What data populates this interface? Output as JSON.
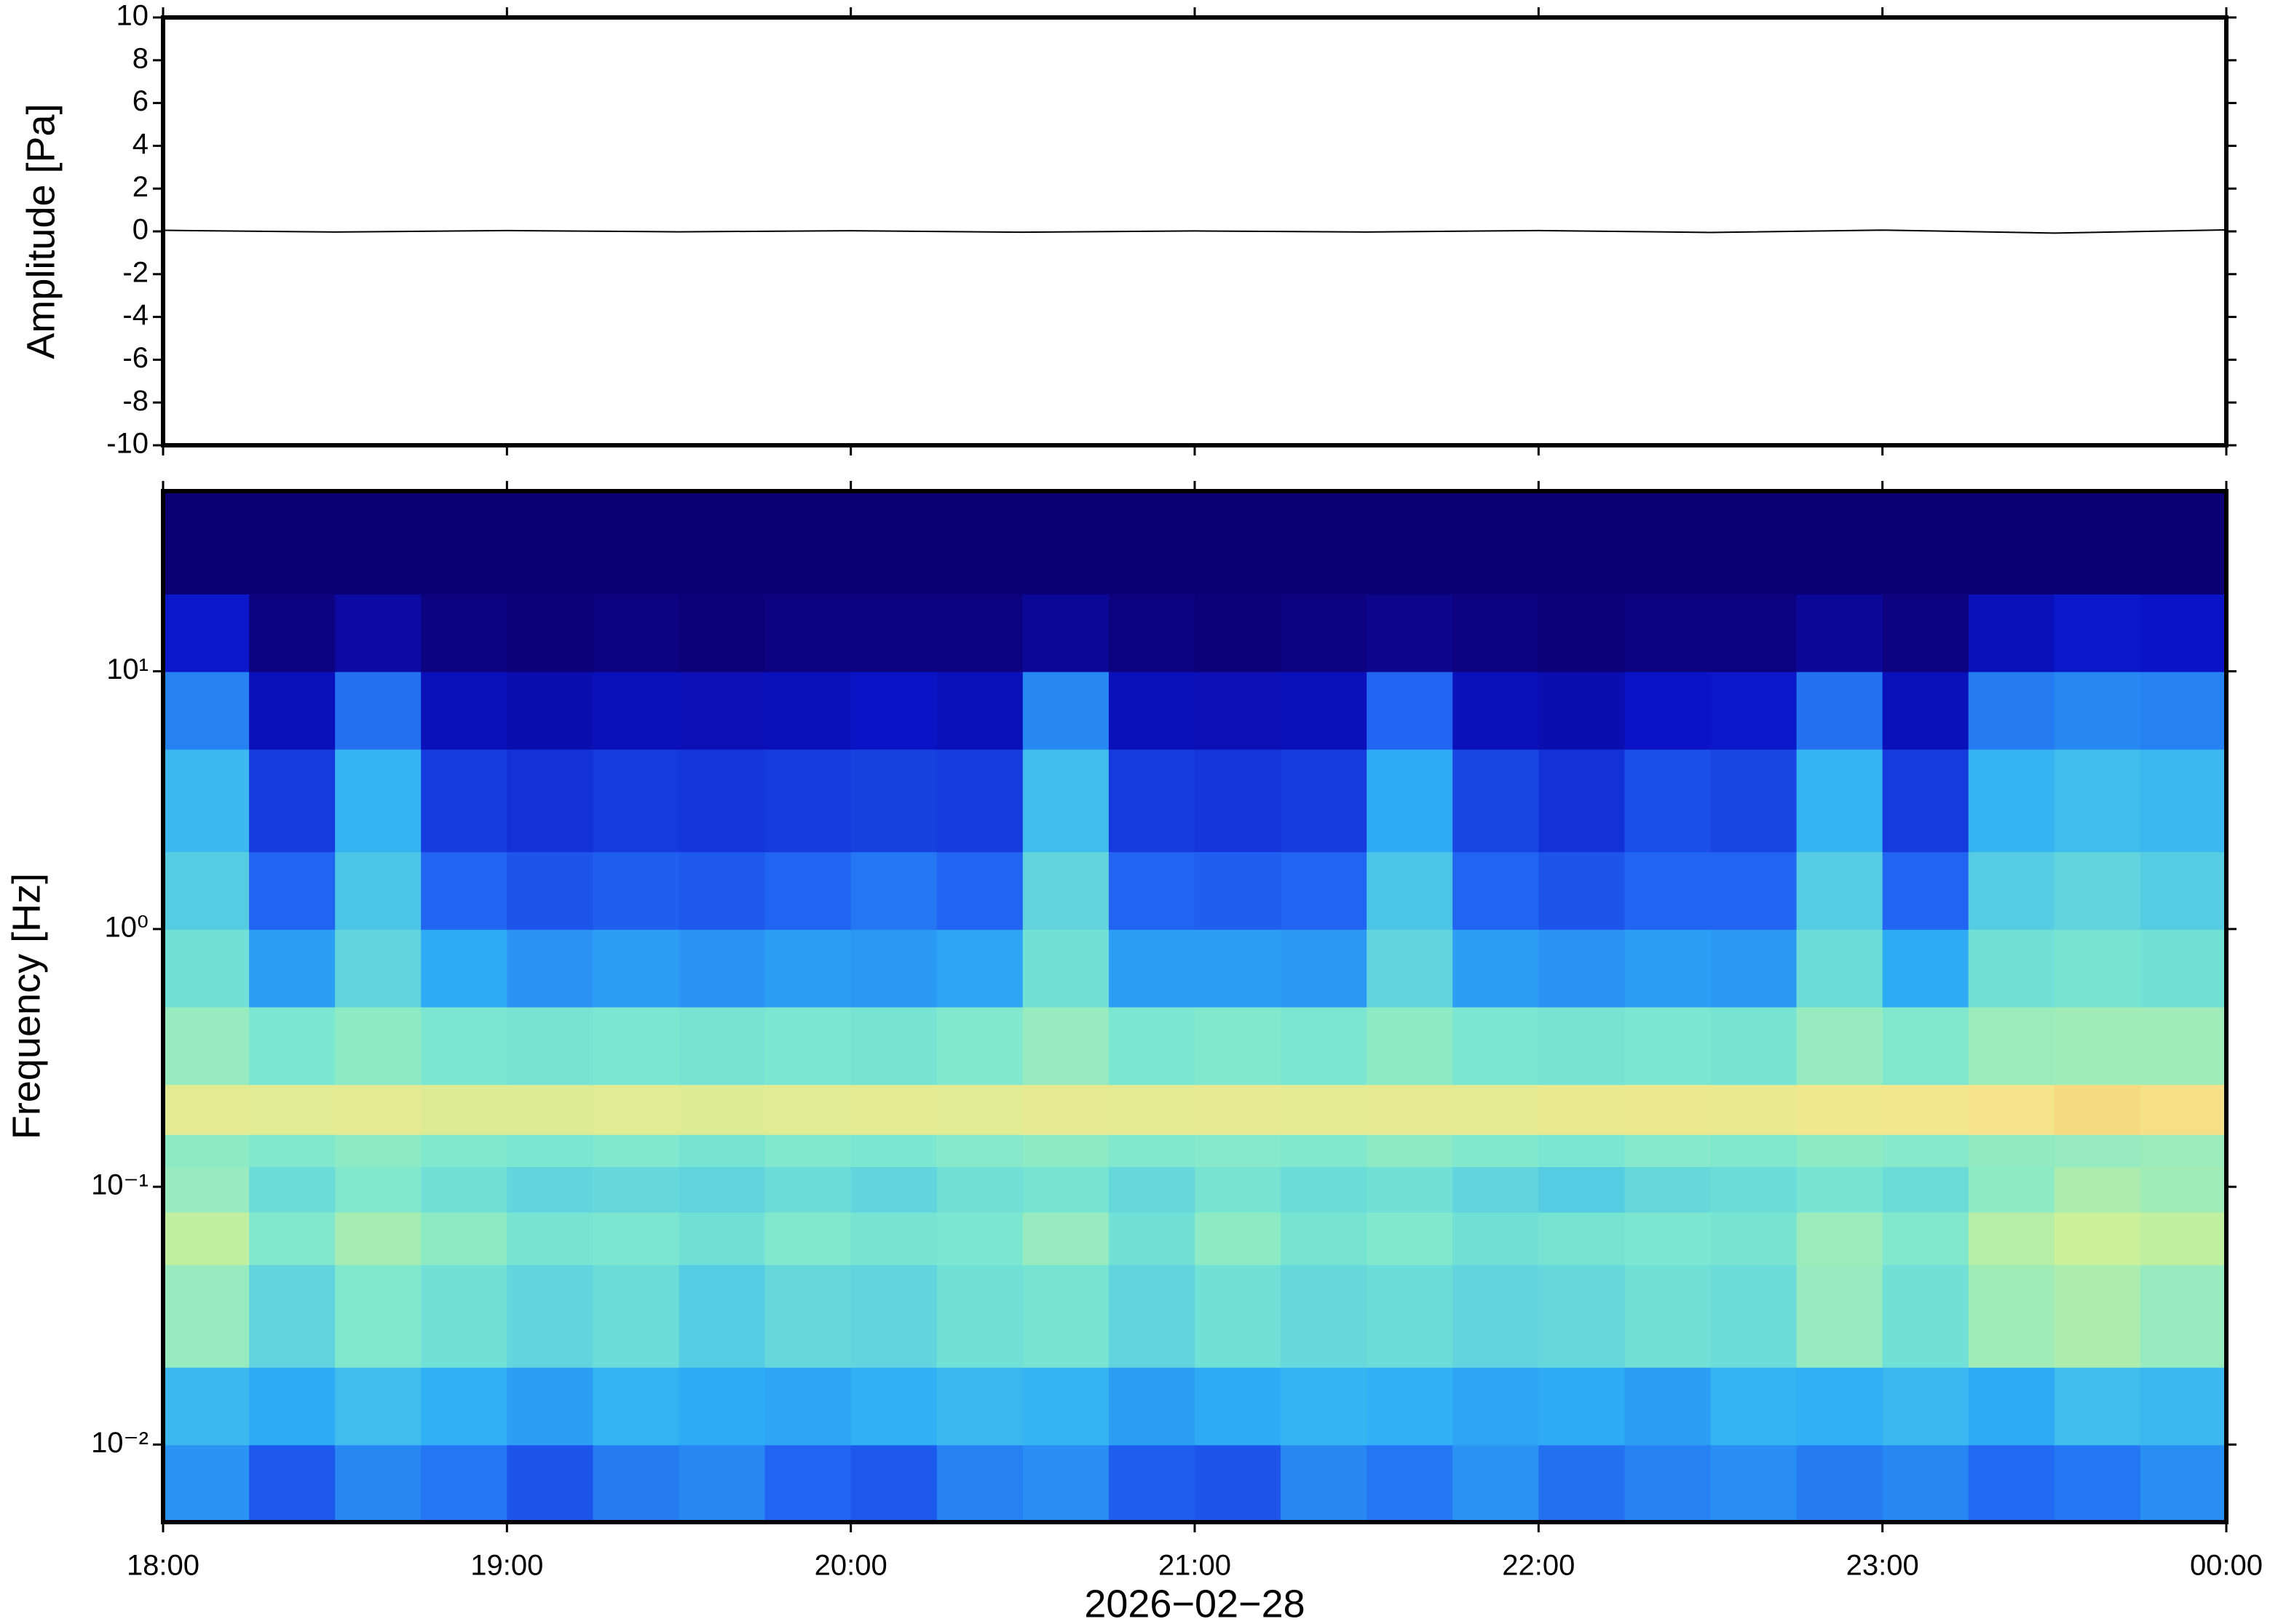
{
  "chart_data": [
    {
      "type": "line",
      "ylabel": "Amplitude [Pa]",
      "xlim": [
        18,
        24
      ],
      "xticks": [
        {
          "value": 18,
          "label": "18:00"
        },
        {
          "value": 19,
          "label": "19:00"
        },
        {
          "value": 20,
          "label": "20:00"
        },
        {
          "value": 21,
          "label": "21:00"
        },
        {
          "value": 22,
          "label": "22:00"
        },
        {
          "value": 23,
          "label": "23:00"
        },
        {
          "value": 24,
          "label": "00:00"
        }
      ],
      "ylim": [
        -10,
        10
      ],
      "yticks": [
        -10,
        -8,
        -6,
        -4,
        -2,
        0,
        2,
        4,
        6,
        8,
        10
      ],
      "series": [
        {
          "color": "#000000",
          "x": [
            18,
            18.5,
            19,
            19.5,
            20,
            20.5,
            21,
            21.5,
            22,
            22.5,
            23,
            23.5,
            24
          ],
          "values": [
            0.05,
            -0.03,
            0.04,
            -0.02,
            0.03,
            -0.04,
            0.02,
            -0.03,
            0.04,
            -0.05,
            0.06,
            -0.08,
            0.07
          ]
        }
      ]
    },
    {
      "type": "heatmap",
      "ylabel": "Frequency [Hz]",
      "xlabel": "2026−02−28",
      "log_y": true,
      "xlim": [
        18,
        24
      ],
      "xticks": [
        {
          "value": 18,
          "label": "18:00"
        },
        {
          "value": 19,
          "label": "19:00"
        },
        {
          "value": 20,
          "label": "20:00"
        },
        {
          "value": 21,
          "label": "21:00"
        },
        {
          "value": 22,
          "label": "22:00"
        },
        {
          "value": 23,
          "label": "23:00"
        },
        {
          "value": 24,
          "label": "00:00"
        }
      ],
      "ylim": [
        0.005,
        50
      ],
      "yticks": [
        {
          "value": 0.01,
          "label": "10⁻²"
        },
        {
          "value": 0.1,
          "label": "10⁻¹"
        },
        {
          "value": 1,
          "label": "10⁰"
        },
        {
          "value": 10,
          "label": "10¹"
        }
      ],
      "colormap": [
        "#0d0074",
        "#0a14c8",
        "#1f5cf0",
        "#2fb0f5",
        "#7de8d0",
        "#c8f09a",
        "#f5e68c",
        "#f59a50"
      ],
      "time_bins": [
        18,
        18.25,
        18.5,
        18.75,
        19,
        19.25,
        19.5,
        19.75,
        20,
        20.25,
        20.5,
        20.75,
        21,
        21.25,
        21.5,
        21.75,
        22,
        22.25,
        22.5,
        22.75,
        23,
        23.25,
        23.5,
        23.75,
        24
      ],
      "frequency_bins": [
        0.005,
        0.01,
        0.02,
        0.05,
        0.08,
        0.12,
        0.16,
        0.25,
        0.5,
        1,
        2,
        5,
        10,
        20,
        50
      ],
      "z": [
        [
          0.38,
          0.28,
          0.36,
          0.33,
          0.27,
          0.34,
          0.36,
          0.3,
          0.28,
          0.35,
          0.37,
          0.29,
          0.27,
          0.36,
          0.33,
          0.38,
          0.32,
          0.35,
          0.37,
          0.34,
          0.36,
          0.31,
          0.33,
          0.37
        ],
        [
          0.45,
          0.42,
          0.46,
          0.43,
          0.4,
          0.44,
          0.42,
          0.41,
          0.43,
          0.45,
          0.44,
          0.4,
          0.42,
          0.44,
          0.43,
          0.41,
          0.42,
          0.4,
          0.44,
          0.43,
          0.45,
          0.42,
          0.46,
          0.45
        ],
        [
          0.62,
          0.52,
          0.58,
          0.55,
          0.52,
          0.54,
          0.5,
          0.53,
          0.52,
          0.55,
          0.56,
          0.52,
          0.55,
          0.53,
          0.54,
          0.52,
          0.53,
          0.55,
          0.54,
          0.62,
          0.55,
          0.64,
          0.66,
          0.62
        ],
        [
          0.7,
          0.58,
          0.65,
          0.6,
          0.56,
          0.57,
          0.55,
          0.58,
          0.56,
          0.57,
          0.62,
          0.55,
          0.6,
          0.56,
          0.58,
          0.55,
          0.56,
          0.57,
          0.56,
          0.63,
          0.58,
          0.68,
          0.72,
          0.7
        ],
        [
          0.62,
          0.54,
          0.58,
          0.55,
          0.52,
          0.53,
          0.52,
          0.54,
          0.52,
          0.55,
          0.56,
          0.53,
          0.56,
          0.54,
          0.55,
          0.52,
          0.5,
          0.53,
          0.54,
          0.56,
          0.54,
          0.6,
          0.66,
          0.64
        ],
        [
          0.6,
          0.58,
          0.6,
          0.58,
          0.57,
          0.58,
          0.56,
          0.58,
          0.57,
          0.59,
          0.6,
          0.58,
          0.59,
          0.58,
          0.6,
          0.58,
          0.57,
          0.59,
          0.58,
          0.6,
          0.59,
          0.61,
          0.62,
          0.63
        ],
        [
          0.8,
          0.79,
          0.8,
          0.78,
          0.78,
          0.79,
          0.78,
          0.79,
          0.8,
          0.79,
          0.81,
          0.8,
          0.81,
          0.8,
          0.81,
          0.8,
          0.82,
          0.83,
          0.82,
          0.84,
          0.85,
          0.86,
          0.88,
          0.87
        ],
        [
          0.62,
          0.57,
          0.6,
          0.57,
          0.56,
          0.57,
          0.56,
          0.57,
          0.56,
          0.58,
          0.62,
          0.57,
          0.58,
          0.57,
          0.6,
          0.57,
          0.56,
          0.57,
          0.56,
          0.62,
          0.58,
          0.63,
          0.64,
          0.64
        ],
        [
          0.55,
          0.4,
          0.52,
          0.42,
          0.38,
          0.4,
          0.38,
          0.4,
          0.39,
          0.41,
          0.55,
          0.4,
          0.4,
          0.39,
          0.52,
          0.4,
          0.38,
          0.4,
          0.39,
          0.54,
          0.42,
          0.55,
          0.56,
          0.55
        ],
        [
          0.5,
          0.3,
          0.48,
          0.3,
          0.27,
          0.29,
          0.28,
          0.3,
          0.33,
          0.3,
          0.52,
          0.3,
          0.29,
          0.3,
          0.48,
          0.3,
          0.27,
          0.3,
          0.3,
          0.5,
          0.3,
          0.5,
          0.52,
          0.5
        ],
        [
          0.45,
          0.22,
          0.44,
          0.22,
          0.2,
          0.22,
          0.21,
          0.22,
          0.23,
          0.22,
          0.46,
          0.22,
          0.21,
          0.22,
          0.42,
          0.24,
          0.2,
          0.26,
          0.24,
          0.44,
          0.22,
          0.44,
          0.46,
          0.45
        ],
        [
          0.35,
          0.12,
          0.32,
          0.12,
          0.1,
          0.12,
          0.11,
          0.12,
          0.14,
          0.12,
          0.36,
          0.12,
          0.11,
          0.12,
          0.3,
          0.12,
          0.1,
          0.14,
          0.15,
          0.32,
          0.12,
          0.34,
          0.36,
          0.35
        ],
        [
          0.15,
          0.02,
          0.08,
          0.02,
          0.01,
          0.02,
          0.01,
          0.02,
          0.02,
          0.02,
          0.06,
          0.02,
          0.01,
          0.02,
          0.04,
          0.02,
          0.01,
          0.02,
          0.02,
          0.06,
          0.02,
          0.12,
          0.15,
          0.14
        ],
        [
          0,
          0,
          0,
          0,
          0,
          0,
          0,
          0,
          0,
          0,
          0,
          0,
          0,
          0,
          0,
          0,
          0,
          0,
          0,
          0,
          0,
          0,
          0,
          0
        ]
      ]
    }
  ]
}
